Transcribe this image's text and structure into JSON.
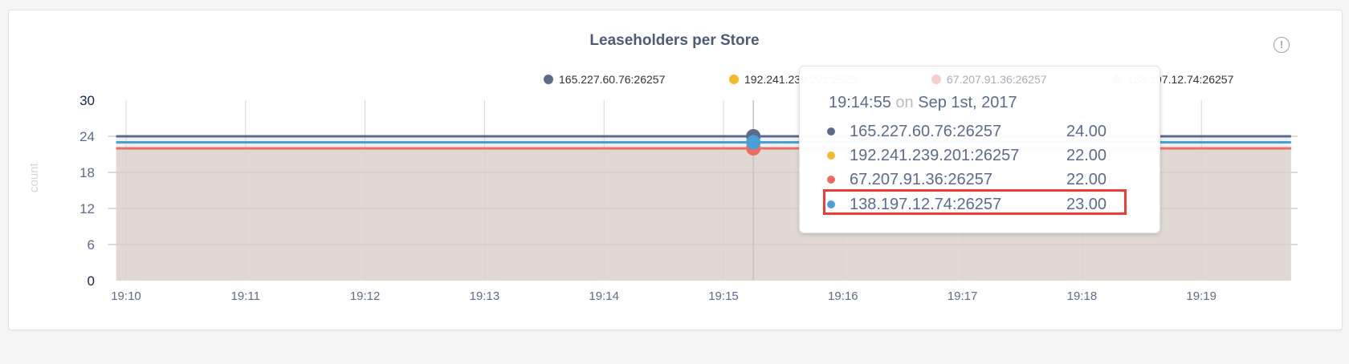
{
  "info_icon": "info-circle-icon",
  "chart_data": {
    "type": "area",
    "title": "Leaseholders per Store",
    "ylabel": "count",
    "xlabel": "",
    "ylim": [
      0,
      30
    ],
    "yticks": [
      "0",
      "6",
      "12",
      "18",
      "24",
      "30"
    ],
    "xticks": [
      "19:10",
      "19:11",
      "19:12",
      "19:13",
      "19:14",
      "19:15",
      "19:16",
      "19:17",
      "19:18",
      "19:19"
    ],
    "grid": true,
    "legend_position": "top",
    "x": [
      "19:09:55",
      "19:19:45"
    ],
    "series": [
      {
        "name": "165.227.60.76:26257",
        "legend_label": "165.227.60.76:26257",
        "color": "#5c6b8a",
        "values": [
          24,
          24
        ]
      },
      {
        "name": "192.241.239.201:26257",
        "legend_label": "192.241.239.201:2625...",
        "color": "#f2bb2b",
        "values": [
          22,
          22
        ]
      },
      {
        "name": "67.207.91.36:26257",
        "legend_label": "67.207.91.36:26257",
        "color": "#ee6b65",
        "values": [
          22,
          22
        ]
      },
      {
        "name": "138.197.12.74:26257",
        "legend_label": "138.197.12.74:26257",
        "color": "#4a9fd6",
        "values": [
          23,
          23
        ]
      }
    ],
    "hover_x": "19:15:15",
    "tooltip": {
      "time": "19:14:55",
      "on": "on",
      "date": "Sep 1st, 2017",
      "rows": [
        {
          "name": "165.227.60.76:26257",
          "value": "24.00"
        },
        {
          "name": "192.241.239.201:26257",
          "value": "22.00"
        },
        {
          "name": "67.207.91.36:26257",
          "value": "22.00"
        },
        {
          "name": "138.197.12.74:26257",
          "value": "23.00"
        }
      ],
      "highlighted_row": 3
    }
  }
}
